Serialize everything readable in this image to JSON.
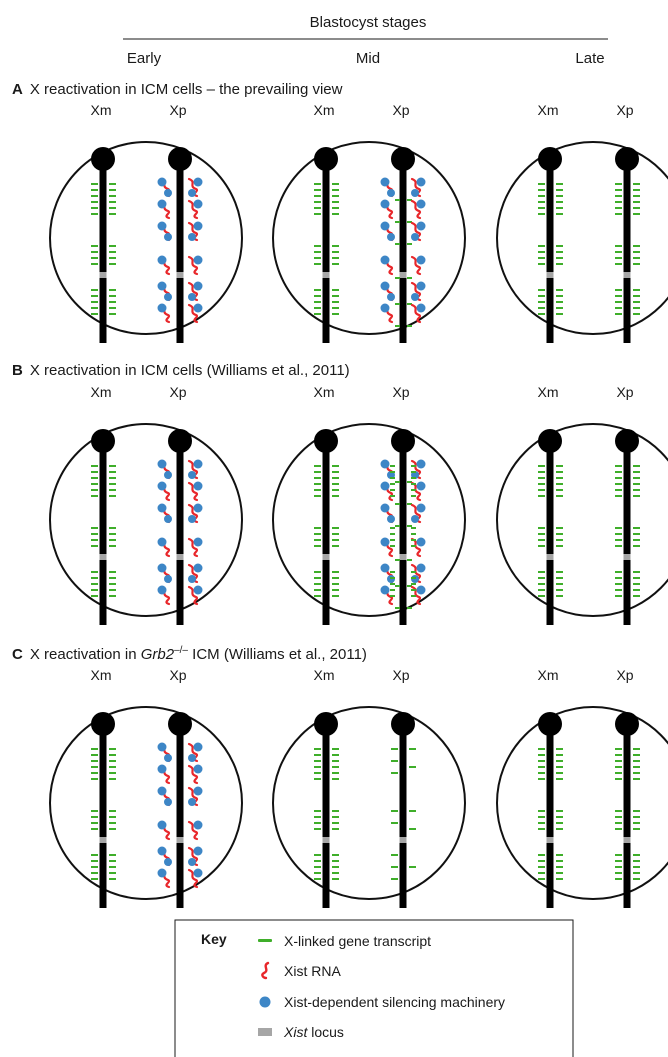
{
  "header": {
    "title": "Blastocyst stages",
    "stages": [
      "Early",
      "Mid",
      "Late"
    ]
  },
  "chrom_labels": {
    "maternal": "Xm",
    "paternal": "Xp"
  },
  "panels": [
    {
      "letter": "A",
      "title_pre": "X reactivation in ICM cells – the prevailing view",
      "title_italic": "",
      "title_sup": "",
      "title_post": "",
      "cells": [
        {
          "xm": "active",
          "xp": "silenced"
        },
        {
          "xm": "active",
          "xp": "partial"
        },
        {
          "xm": "active",
          "xp": "active"
        }
      ]
    },
    {
      "letter": "B",
      "title_pre": "X reactivation in ICM cells (Williams et al., 2011)",
      "title_italic": "",
      "title_sup": "",
      "title_post": "",
      "cells": [
        {
          "xm": "active",
          "xp": "silenced"
        },
        {
          "xm": "active",
          "xp": "mixed"
        },
        {
          "xm": "active",
          "xp": "active"
        }
      ]
    },
    {
      "letter": "C",
      "title_pre": "X reactivation in ",
      "title_italic": "Grb2",
      "title_sup": "–/–",
      "title_post": " ICM (Williams et al., 2011)",
      "cells": [
        {
          "xm": "active",
          "xp": "silenced"
        },
        {
          "xm": "active",
          "xp": "sparse"
        },
        {
          "xm": "active",
          "xp": "active"
        }
      ]
    }
  ],
  "key": {
    "title": "Key",
    "items": [
      {
        "symbol": "transcript",
        "label": "X-linked gene transcript",
        "italic": ""
      },
      {
        "symbol": "xist-rna",
        "label": "Xist RNA",
        "italic": ""
      },
      {
        "symbol": "machinery",
        "label": "Xist-dependent silencing machinery",
        "italic": ""
      },
      {
        "symbol": "xist-locus",
        "label": " locus",
        "italic": "Xist"
      }
    ]
  },
  "colors": {
    "transcript": "#3fae2a",
    "xist_rna": "#e8262a",
    "machinery": "#3d86c6",
    "xist_locus": "#a6a6a6",
    "chromosome": "#000000"
  }
}
